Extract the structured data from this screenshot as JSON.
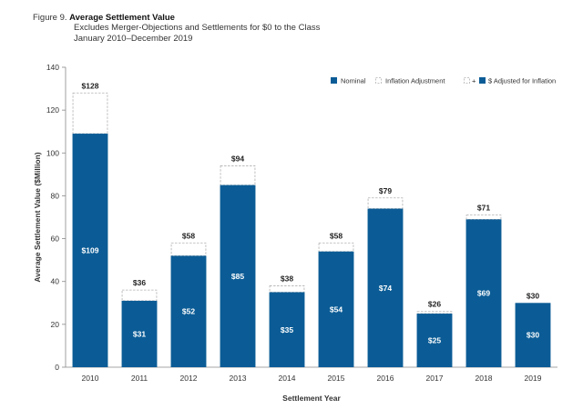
{
  "header": {
    "figure_number": "Figure 9.",
    "title": "Average Settlement Value",
    "subtitle1": "Excludes Merger-Objections and Settlements for $0 to the Class",
    "subtitle2": "January 2010–December 2019"
  },
  "legend": {
    "nominal": "Nominal",
    "inflation": "Inflation Adjustment",
    "plus": "+",
    "adjusted": "$ Adjusted for Inflation"
  },
  "colors": {
    "nominal": "#0b5c96",
    "inflation_border": "#b0b0b0",
    "axis": "#888888"
  },
  "chart_data": {
    "type": "bar",
    "title": "Average Settlement Value",
    "xlabel": "Settlement Year",
    "ylabel": "Average Settlement Value ($Million)",
    "ylim": [
      0,
      140
    ],
    "yticks": [
      "0",
      "20",
      "40",
      "60",
      "80",
      "100",
      "120",
      "140"
    ],
    "categories": [
      "2010",
      "2011",
      "2012",
      "2013",
      "2014",
      "2015",
      "2016",
      "2017",
      "2018",
      "2019"
    ],
    "series": [
      {
        "name": "Nominal",
        "values": [
          109,
          31,
          52,
          85,
          35,
          54,
          74,
          25,
          69,
          30
        ],
        "labels": [
          "$109",
          "$31",
          "$52",
          "$85",
          "$35",
          "$54",
          "$74",
          "$25",
          "$69",
          "$30"
        ]
      },
      {
        "name": "$ Adjusted for Inflation",
        "values": [
          128,
          36,
          58,
          94,
          38,
          58,
          79,
          26,
          71,
          30
        ],
        "labels": [
          "$128",
          "$36",
          "$58",
          "$94",
          "$38",
          "$58",
          "$79",
          "$26",
          "$71",
          "$30"
        ]
      }
    ],
    "grid": false,
    "legend_position": "top-right"
  }
}
